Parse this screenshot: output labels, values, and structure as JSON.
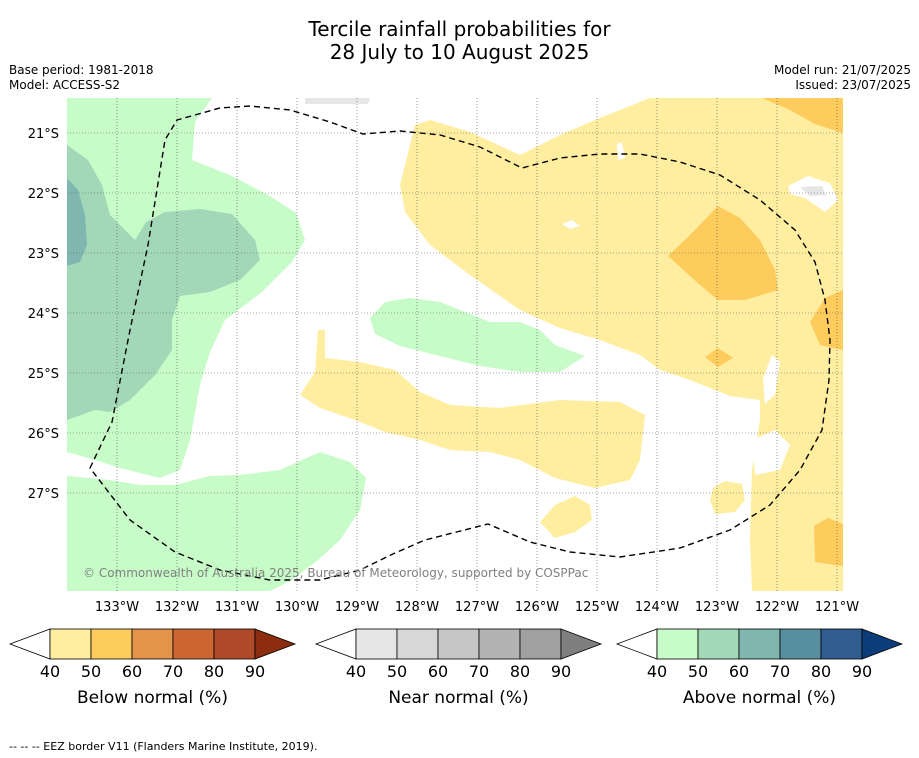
{
  "title_line1": "Tercile rainfall probabilities for",
  "title_line2": "28 July to 10 August 2025",
  "meta_left": [
    "Base period: 1981-2018",
    "Model: ACCESS-S2"
  ],
  "meta_right": [
    "Model run: 21/07/2025",
    "Issued: 23/07/2025"
  ],
  "lat_labels": [
    "21°S",
    "22°S",
    "23°S",
    "24°S",
    "25°S",
    "26°S",
    "27°S"
  ],
  "lon_labels": [
    "133°W",
    "132°W",
    "131°W",
    "130°W",
    "129°W",
    "128°W",
    "127°W",
    "126°W",
    "125°W",
    "124°W",
    "123°W",
    "122°W",
    "121°W"
  ],
  "copyright": "© Commonwealth of Australia 2025, Bureau of Meteorology, supported by COSPPac",
  "colorbars": [
    {
      "label": "Below normal (%)",
      "ticks": [
        "40",
        "50",
        "60",
        "70",
        "80",
        "90"
      ],
      "colors": [
        "#ffffff",
        "#ffeda0",
        "#fecc5c",
        "#e3944a",
        "#cd6632",
        "#b04a28",
        "#8c2d10"
      ]
    },
    {
      "label": "Near normal (%)",
      "ticks": [
        "40",
        "50",
        "60",
        "70",
        "80",
        "90"
      ],
      "colors": [
        "#ffffff",
        "#e6e6e6",
        "#d7d7d7",
        "#c6c6c6",
        "#b3b3b3",
        "#a0a0a0",
        "#7f7f7f"
      ]
    },
    {
      "label": "Above normal (%)",
      "ticks": [
        "40",
        "50",
        "60",
        "70",
        "80",
        "90"
      ],
      "colors": [
        "#ffffff",
        "#c7fcc8",
        "#a2d8b8",
        "#7fb7b0",
        "#578f9f",
        "#2f5d8f",
        "#0d3d78"
      ]
    }
  ],
  "footer": "--  --  -- EEZ border V11 (Flanders Marine Institute, 2019).",
  "region_colors": {
    "below_40_50": "#ffeda0",
    "below_50_60": "#fecc5c",
    "above_40_50": "#c7fcc8",
    "above_50_60": "#a2d8b8",
    "above_60_70": "#7fb7b0",
    "near_40_50": "#e6e6e6"
  }
}
